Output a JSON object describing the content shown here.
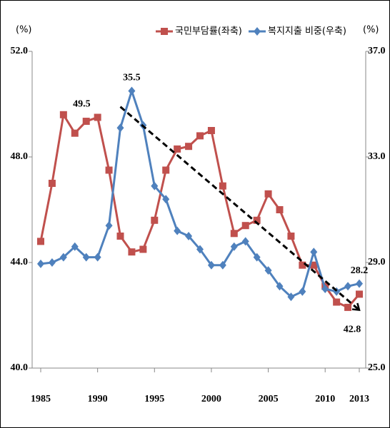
{
  "chart_data": {
    "type": "line",
    "y_unit": "(%)",
    "y2_unit": "(%)",
    "x": [
      1985,
      1986,
      1987,
      1988,
      1989,
      1990,
      1991,
      1992,
      1993,
      1994,
      1995,
      1996,
      1997,
      1998,
      1999,
      2000,
      2001,
      2002,
      2003,
      2004,
      2005,
      2006,
      2007,
      2008,
      2009,
      2010,
      2011,
      2012,
      2013
    ],
    "xlim": [
      1985,
      2013
    ],
    "xticks": [
      1985,
      1990,
      1995,
      2000,
      2005,
      2010,
      2013
    ],
    "ylim": [
      40,
      52
    ],
    "yticks": [
      {
        "value": 40,
        "label": "40.0"
      },
      {
        "value": 44,
        "label": "44.0"
      },
      {
        "value": 48,
        "label": "48.0"
      },
      {
        "value": 52,
        "label": "52.0"
      }
    ],
    "y2lim": [
      25,
      37
    ],
    "y2ticks": [
      {
        "value": 25,
        "label": "25.0"
      },
      {
        "value": 29,
        "label": "29.0"
      },
      {
        "value": 33,
        "label": "33.0"
      },
      {
        "value": 37,
        "label": "37.0"
      }
    ],
    "series": [
      {
        "name": "국민부담률(좌축)",
        "color": "#c0504d",
        "marker": "square",
        "values": [
          44.8,
          47.0,
          49.6,
          48.9,
          49.35,
          49.5,
          47.5,
          45.0,
          44.4,
          44.5,
          45.6,
          47.5,
          48.3,
          48.4,
          48.8,
          49.0,
          46.9,
          45.1,
          45.4,
          45.6,
          46.6,
          46.0,
          45.0,
          43.9,
          43.9,
          43.1,
          42.5,
          42.3,
          42.8
        ],
        "value_labels": [
          null,
          null,
          null,
          null,
          null,
          "49.5",
          null,
          null,
          null,
          null,
          null,
          null,
          null,
          null,
          null,
          null,
          null,
          null,
          null,
          null,
          null,
          null,
          null,
          null,
          null,
          null,
          null,
          null,
          "42.8"
        ]
      },
      {
        "name": "복지지출 비중(우축)",
        "color": "#4f81bd",
        "marker": "diamond",
        "axis": "y2",
        "values": [
          28.95,
          29.0,
          29.2,
          29.6,
          29.2,
          29.2,
          30.4,
          34.1,
          35.5,
          34.2,
          31.9,
          31.4,
          30.2,
          30.0,
          29.5,
          28.9,
          28.9,
          29.6,
          29.8,
          29.2,
          28.7,
          28.1,
          27.7,
          27.9,
          29.4,
          28.0,
          27.9,
          28.1,
          28.2
        ],
        "value_labels": [
          null,
          null,
          null,
          null,
          null,
          null,
          null,
          null,
          "35.5",
          null,
          null,
          null,
          null,
          null,
          null,
          null,
          null,
          null,
          null,
          null,
          null,
          null,
          null,
          null,
          null,
          null,
          null,
          null,
          "28.2"
        ]
      }
    ],
    "trendline": {
      "x": [
        1992,
        2013
      ],
      "values": [
        49.9,
        42.2
      ],
      "color": "#000000"
    }
  }
}
